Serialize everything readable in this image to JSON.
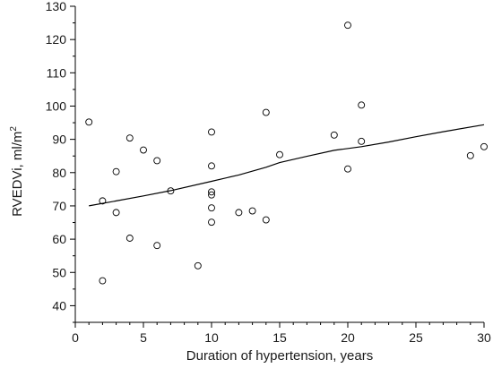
{
  "chart_data": {
    "type": "scatter",
    "xlabel": "Duration of hypertension, years",
    "ylabel": {
      "main": "RVEDVi, ml/m",
      "sup": "2"
    },
    "xlim": [
      0,
      30
    ],
    "ylim": [
      35,
      130
    ],
    "xticks_major": [
      0,
      5,
      10,
      15,
      20,
      25,
      30
    ],
    "xticks_minor": [
      1,
      2,
      3,
      4,
      6,
      7,
      8,
      9,
      11,
      12,
      13,
      14,
      16,
      17,
      18,
      19,
      21,
      22,
      23,
      24,
      26,
      27,
      28,
      29
    ],
    "yticks_major": [
      40,
      50,
      60,
      70,
      80,
      90,
      100,
      110,
      120,
      130
    ],
    "yticks_minor": [
      35,
      45,
      55,
      65,
      75,
      85,
      95,
      105,
      115,
      125
    ],
    "grid": false,
    "legend": "none",
    "points": [
      {
        "x": 1,
        "y": 95.2
      },
      {
        "x": 2,
        "y": 71.5
      },
      {
        "x": 2,
        "y": 47.5
      },
      {
        "x": 3,
        "y": 80.3
      },
      {
        "x": 3,
        "y": 68.0
      },
      {
        "x": 4,
        "y": 90.4
      },
      {
        "x": 4,
        "y": 60.3
      },
      {
        "x": 5,
        "y": 86.8
      },
      {
        "x": 6,
        "y": 83.6
      },
      {
        "x": 6,
        "y": 58.1
      },
      {
        "x": 7,
        "y": 74.5
      },
      {
        "x": 9,
        "y": 52.0
      },
      {
        "x": 10,
        "y": 92.2
      },
      {
        "x": 10,
        "y": 82.0
      },
      {
        "x": 10,
        "y": 74.2
      },
      {
        "x": 10,
        "y": 73.3
      },
      {
        "x": 10,
        "y": 69.4
      },
      {
        "x": 10,
        "y": 65.1
      },
      {
        "x": 12,
        "y": 68.0
      },
      {
        "x": 13,
        "y": 68.5
      },
      {
        "x": 14,
        "y": 98.1
      },
      {
        "x": 14,
        "y": 65.8
      },
      {
        "x": 15,
        "y": 85.4
      },
      {
        "x": 19,
        "y": 91.3
      },
      {
        "x": 20,
        "y": 124.3
      },
      {
        "x": 20,
        "y": 81.1
      },
      {
        "x": 21,
        "y": 100.3
      },
      {
        "x": 21,
        "y": 89.4
      },
      {
        "x": 29,
        "y": 85.1
      },
      {
        "x": 30,
        "y": 87.8
      }
    ],
    "trend_line": {
      "x": [
        1,
        3,
        5,
        7,
        10,
        12,
        14,
        15,
        17,
        19,
        21,
        23,
        25,
        27,
        30
      ],
      "y": [
        70.0,
        71.5,
        73.0,
        74.6,
        77.4,
        79.3,
        81.6,
        83.0,
        84.9,
        86.7,
        87.8,
        89.2,
        90.8,
        92.3,
        94.4
      ]
    },
    "colors": {
      "marker": "#000000",
      "line": "#000000",
      "background": "#ffffff"
    }
  }
}
